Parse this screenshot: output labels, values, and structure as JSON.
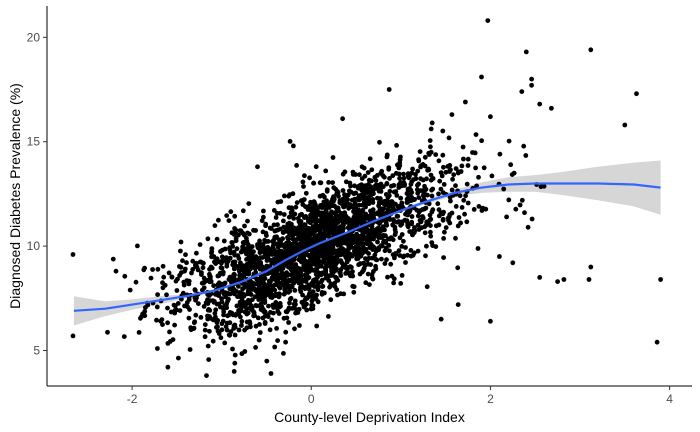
{
  "chart_data": {
    "type": "scatter",
    "title": "",
    "xlabel": "County-level Deprivation Index",
    "ylabel": "Diagnosed Diabetes Prevalence (%)",
    "xlim": [
      -2.95,
      4.25
    ],
    "ylim": [
      3.3,
      21.5
    ],
    "x_ticks": [
      -2,
      0,
      2,
      4
    ],
    "y_ticks": [
      5,
      10,
      15,
      20
    ],
    "grid": false,
    "legend": "none",
    "point_color": "#000000",
    "smooth_color": "#3366FF",
    "ribbon_color": "#C8C8C8",
    "points_visible_outliers": [
      {
        "x": 1.97,
        "y": 20.8
      },
      {
        "x": 3.12,
        "y": 19.4
      },
      {
        "x": 2.4,
        "y": 19.3
      },
      {
        "x": 3.63,
        "y": 17.3
      },
      {
        "x": 1.9,
        "y": 18.1
      },
      {
        "x": 2.46,
        "y": 18.0
      },
      {
        "x": 2.46,
        "y": 17.7
      },
      {
        "x": 2.35,
        "y": 17.4
      },
      {
        "x": 2.55,
        "y": 16.8
      },
      {
        "x": 2.68,
        "y": 16.6
      },
      {
        "x": 3.5,
        "y": 15.8
      },
      {
        "x": 2.0,
        "y": 16.2
      },
      {
        "x": 1.72,
        "y": 16.9
      },
      {
        "x": 0.87,
        "y": 17.5
      },
      {
        "x": -2.66,
        "y": 9.6
      },
      {
        "x": -2.66,
        "y": 5.7
      },
      {
        "x": -2.18,
        "y": 8.8
      },
      {
        "x": 3.86,
        "y": 5.4
      },
      {
        "x": 3.9,
        "y": 8.4
      },
      {
        "x": 3.12,
        "y": 9.0
      },
      {
        "x": 2.75,
        "y": 8.3
      },
      {
        "x": 2.82,
        "y": 8.4
      },
      {
        "x": 2.55,
        "y": 8.5
      },
      {
        "x": 3.1,
        "y": 8.4
      },
      {
        "x": 2.18,
        "y": 11.4
      },
      {
        "x": 1.64,
        "y": 7.2
      },
      {
        "x": 1.45,
        "y": 6.5
      },
      {
        "x": 2.0,
        "y": 6.4
      },
      {
        "x": -1.17,
        "y": 3.8
      },
      {
        "x": -0.86,
        "y": 4.0
      },
      {
        "x": -0.45,
        "y": 3.9
      },
      {
        "x": -1.6,
        "y": 4.2
      },
      {
        "x": 2.38,
        "y": 11.6
      },
      {
        "x": 2.42,
        "y": 10.9
      },
      {
        "x": 2.1,
        "y": 9.5
      },
      {
        "x": 2.25,
        "y": 9.2
      },
      {
        "x": 1.35,
        "y": 15.9
      },
      {
        "x": 1.57,
        "y": 16.3
      },
      {
        "x": 0.35,
        "y": 16.1
      },
      {
        "x": -0.2,
        "y": 14.8
      },
      {
        "x": -0.6,
        "y": 13.8
      }
    ],
    "point_cloud": {
      "count": 2600,
      "x_mean": -0.05,
      "x_sd": 0.72,
      "y_sd_residual": 1.3
    },
    "smooth_line": {
      "x": [
        -2.65,
        -2.3,
        -2.0,
        -1.7,
        -1.4,
        -1.1,
        -0.8,
        -0.5,
        -0.3,
        -0.1,
        0.1,
        0.4,
        0.7,
        1.0,
        1.3,
        1.6,
        1.9,
        2.2,
        2.5,
        2.8,
        3.2,
        3.6,
        3.9
      ],
      "y": [
        6.9,
        7.0,
        7.2,
        7.4,
        7.6,
        7.85,
        8.25,
        8.8,
        9.3,
        9.75,
        10.15,
        10.65,
        11.2,
        11.7,
        12.15,
        12.55,
        12.8,
        12.95,
        13.0,
        13.0,
        13.0,
        12.95,
        12.8
      ],
      "ribbon_lower": [
        6.2,
        6.65,
        6.95,
        7.2,
        7.5,
        7.78,
        8.18,
        8.74,
        9.25,
        9.7,
        10.1,
        10.6,
        11.15,
        11.63,
        12.05,
        12.4,
        12.55,
        12.6,
        12.6,
        12.45,
        12.2,
        11.9,
        11.5
      ],
      "ribbon_upper": [
        7.6,
        7.35,
        7.45,
        7.6,
        7.7,
        7.92,
        8.32,
        8.86,
        9.35,
        9.8,
        10.2,
        10.7,
        11.25,
        11.77,
        12.25,
        12.7,
        13.05,
        13.3,
        13.4,
        13.55,
        13.8,
        14.0,
        14.1
      ]
    }
  }
}
